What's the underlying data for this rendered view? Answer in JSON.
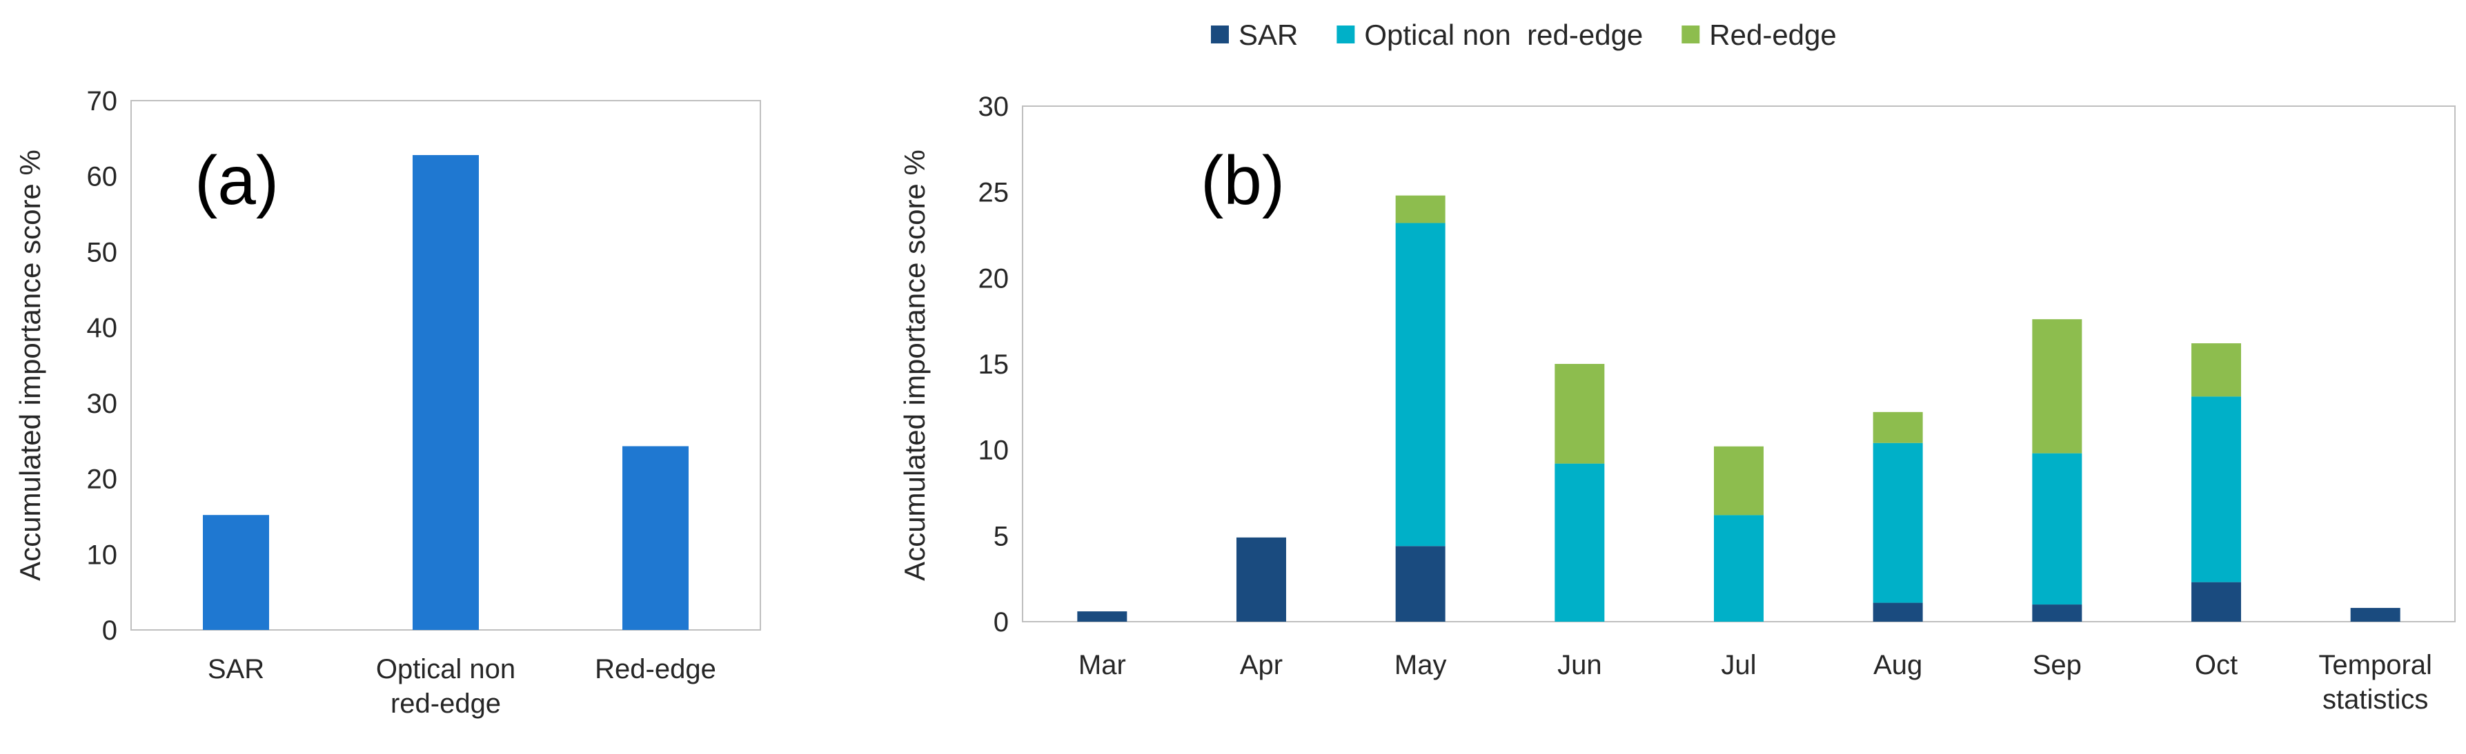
{
  "chart_data": [
    {
      "id": "a",
      "type": "bar",
      "panel_label": "(a)",
      "title": "",
      "xlabel": "",
      "ylabel": "Accumulated importance score %",
      "ylim": [
        0,
        70
      ],
      "ytick_step": 10,
      "categories": [
        [
          "SAR"
        ],
        [
          "Optical non",
          "red-edge"
        ],
        [
          "Red-edge"
        ]
      ],
      "values": [
        15.2,
        62.8,
        24.3
      ],
      "color": "#1f78d1"
    },
    {
      "id": "b",
      "type": "stacked_bar",
      "panel_label": "(b)",
      "title": "",
      "xlabel": "",
      "ylabel": "Accumulated importance score %",
      "ylim": [
        0,
        30
      ],
      "ytick_step": 5,
      "categories": [
        [
          "Mar"
        ],
        [
          "Apr"
        ],
        [
          "May"
        ],
        [
          "Jun"
        ],
        [
          "Jul"
        ],
        [
          "Aug"
        ],
        [
          "Sep"
        ],
        [
          "Oct"
        ],
        [
          "Temporal",
          "statistics"
        ]
      ],
      "legend_position": "top-center",
      "series": [
        {
          "name": "SAR",
          "color": "#1a4b7f",
          "values": [
            0.6,
            4.9,
            4.4,
            0,
            0,
            1.1,
            1.0,
            2.3,
            0.8
          ]
        },
        {
          "name": "Optical non  red-edge",
          "color": "#00b0c8",
          "values": [
            0,
            0,
            18.8,
            9.2,
            6.2,
            9.3,
            8.8,
            10.8,
            0
          ]
        },
        {
          "name": "Red-edge",
          "color": "#8dbd4e",
          "values": [
            0,
            0,
            1.6,
            5.8,
            4.0,
            1.8,
            7.8,
            3.1,
            0
          ]
        }
      ]
    }
  ]
}
